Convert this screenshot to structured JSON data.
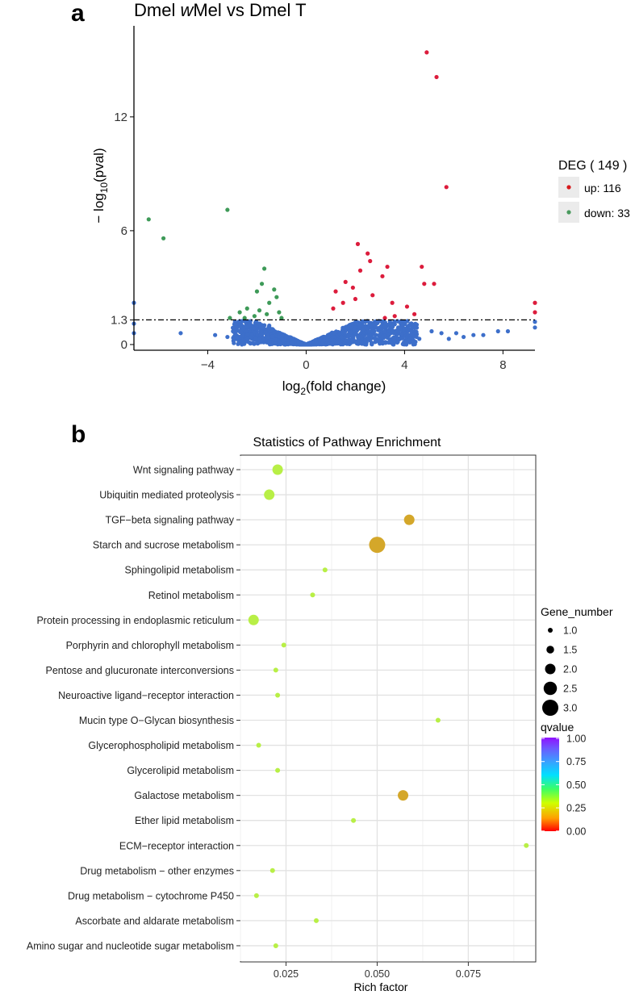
{
  "panels": {
    "a": {
      "letter": "a",
      "title_prefix": "Dmel ",
      "title_italic": "w",
      "title_suffix": "Mel vs Dmel T"
    },
    "b": {
      "letter": "b"
    }
  },
  "chart_data": [
    {
      "type": "scatter",
      "subtype": "volcano",
      "title": "Dmel wMel vs Dmel T",
      "xlabel": "log2(fold change)",
      "ylabel": "-log10(pval)",
      "xlabel_parts": {
        "base": "log",
        "sub": "2",
        "rest": "(fold change)"
      },
      "ylabel_parts": {
        "pre": "− log",
        "sub": "10",
        "rest": "(pval)"
      },
      "xlim": [
        -7,
        9.3
      ],
      "ylim": [
        -0.3,
        16.8
      ],
      "xticks": [
        -4,
        0,
        4,
        8
      ],
      "xtick_labels": [
        "−4",
        "0",
        "4",
        "8"
      ],
      "yticks": [
        0,
        1.3,
        6,
        12
      ],
      "ytick_labels": [
        "0",
        "1.3",
        "6",
        "12"
      ],
      "threshold": 1.3,
      "legend": {
        "title": "DEG ( 149 )",
        "items": [
          {
            "label": "up: 116",
            "color": "#d7191c"
          },
          {
            "label": "down: 33",
            "color": "#4a9a5e"
          }
        ]
      },
      "colors": {
        "up": "#dc1c3c",
        "down": "#3e9a58",
        "ns": "#3d6fca"
      },
      "up_points": [
        [
          4.9,
          15.4
        ],
        [
          5.3,
          14.1
        ],
        [
          5.7,
          8.3
        ],
        [
          2.1,
          5.3
        ],
        [
          2.5,
          4.8
        ],
        [
          2.6,
          4.4
        ],
        [
          4.7,
          4.1
        ],
        [
          3.3,
          4.1
        ],
        [
          2.2,
          3.9
        ],
        [
          1.6,
          3.3
        ],
        [
          3.1,
          3.6
        ],
        [
          1.9,
          3.0
        ],
        [
          4.8,
          3.2
        ],
        [
          5.2,
          3.2
        ],
        [
          1.2,
          2.8
        ],
        [
          1.5,
          2.2
        ],
        [
          2.0,
          2.4
        ],
        [
          2.7,
          2.6
        ],
        [
          3.5,
          2.2
        ],
        [
          4.1,
          2.0
        ],
        [
          1.1,
          1.9
        ],
        [
          9.3,
          2.2
        ],
        [
          9.3,
          1.7
        ],
        [
          3.2,
          1.4
        ],
        [
          3.6,
          1.5
        ],
        [
          4.4,
          1.6
        ]
      ],
      "down_points": [
        [
          -3.2,
          7.1
        ],
        [
          -6.4,
          6.6
        ],
        [
          -5.8,
          5.6
        ],
        [
          -1.7,
          4.0
        ],
        [
          -1.8,
          3.2
        ],
        [
          -1.3,
          2.9
        ],
        [
          -1.2,
          2.5
        ],
        [
          -2.0,
          2.8
        ],
        [
          -2.1,
          1.5
        ],
        [
          -1.5,
          2.2
        ],
        [
          -1.9,
          1.8
        ],
        [
          -2.7,
          1.7
        ],
        [
          -2.4,
          1.9
        ],
        [
          -1.6,
          1.6
        ],
        [
          -3.1,
          1.4
        ],
        [
          -1.1,
          1.7
        ],
        [
          -1.0,
          1.4
        ],
        [
          -2.5,
          1.4
        ]
      ],
      "ns_points": [
        [
          -5.1,
          0.6
        ],
        [
          -3.7,
          0.5
        ],
        [
          -3.2,
          0.4
        ],
        [
          -2.9,
          0.6
        ],
        [
          -2.5,
          0.8
        ],
        [
          -2.2,
          0.3
        ],
        [
          -1.8,
          0.7
        ],
        [
          -1.5,
          1.0
        ],
        [
          5.8,
          0.3
        ],
        [
          6.1,
          0.6
        ],
        [
          6.8,
          0.5
        ],
        [
          7.2,
          0.5
        ],
        [
          7.8,
          0.7
        ],
        [
          8.2,
          0.7
        ],
        [
          6.4,
          0.4
        ],
        [
          5.5,
          0.6
        ],
        [
          5.1,
          0.7
        ],
        [
          4.6,
          0.3
        ],
        [
          -7.0,
          2.2
        ],
        [
          -7.0,
          1.1
        ],
        [
          -7.0,
          0.6
        ],
        [
          9.3,
          0.9
        ],
        [
          9.3,
          1.2
        ],
        [
          3.9,
          0.8
        ],
        [
          3.4,
          1.1
        ],
        [
          2.8,
          1.2
        ]
      ]
    },
    {
      "type": "scatter",
      "subtype": "bubble",
      "title": "Statistics of Pathway Enrichment",
      "xlabel": "Rich factor",
      "ylabel": "",
      "xlim": [
        0.0125,
        0.0935
      ],
      "xticks": [
        0.025,
        0.05,
        0.075
      ],
      "xtick_labels": [
        "0.025",
        "0.050",
        "0.075"
      ],
      "categories": [
        "Wnt signaling pathway",
        "Ubiquitin mediated proteolysis",
        "TGF−beta signaling pathway",
        "Starch and sucrose metabolism",
        "Sphingolipid metabolism",
        "Retinol metabolism",
        "Protein processing in endoplasmic reticulum",
        "Porphyrin and chlorophyll metabolism",
        "Pentose and glucuronate interconversions",
        "Neuroactive ligand−receptor interaction",
        "Mucin type O−Glycan biosynthesis",
        "Glycerophospholipid metabolism",
        "Glycerolipid metabolism",
        "Galactose metabolism",
        "Ether lipid metabolism",
        "ECM−receptor interaction",
        "Drug metabolism − other enzymes",
        "Drug metabolism − cytochrome P450",
        "Ascorbate and aldarate metabolism",
        "Amino sugar and nucleotide sugar metabolism"
      ],
      "rich_factor": [
        0.0227,
        0.0204,
        0.0588,
        0.05,
        0.0357,
        0.0323,
        0.0161,
        0.0244,
        0.0222,
        0.0227,
        0.0667,
        0.0175,
        0.0227,
        0.0571,
        0.0435,
        0.0909,
        0.0213,
        0.0169,
        0.0333,
        0.0222
      ],
      "gene_number": [
        2,
        2,
        2,
        3,
        1,
        1,
        2,
        1,
        1,
        1,
        1,
        1,
        1,
        2,
        1,
        1,
        1,
        1,
        1,
        1
      ],
      "qvalue": [
        0.35,
        0.35,
        0.12,
        0.12,
        0.35,
        0.35,
        0.35,
        0.35,
        0.35,
        0.35,
        0.35,
        0.35,
        0.35,
        0.12,
        0.35,
        0.35,
        0.35,
        0.35,
        0.35,
        0.35
      ],
      "size_legend": {
        "title": "Gene_number",
        "values": [
          1.0,
          1.5,
          2.0,
          2.5,
          3.0
        ],
        "labels": [
          "1.0",
          "1.5",
          "2.0",
          "2.5",
          "3.0"
        ]
      },
      "color_legend": {
        "title": "qvalue",
        "labels": [
          "1.00",
          "0.75",
          "0.50",
          "0.25",
          "0.00"
        ],
        "stops": [
          "#ff0000",
          "#ffa000",
          "#d0ff00",
          "#3cff64",
          "#00e0ff",
          "#3c9cff",
          "#6a5cff",
          "#9010ff"
        ]
      }
    }
  ]
}
